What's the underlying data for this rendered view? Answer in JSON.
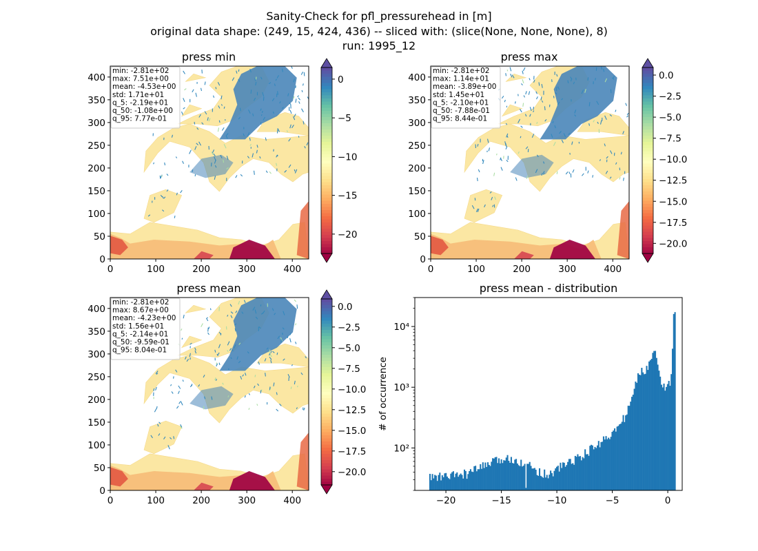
{
  "figure": {
    "title_line1": "Sanity-Check for pfl_pressurehead in [m]",
    "title_line2": "original data shape: (249, 15, 424, 436) -- sliced with: (slice(None, None, None), 8)",
    "title_line3": "run: 1995_12"
  },
  "chart_data": [
    {
      "type": "heatmap",
      "title": "press min",
      "xticks": [
        "0",
        "100",
        "200",
        "300",
        "400"
      ],
      "yticks": [
        "0",
        "50",
        "100",
        "150",
        "200",
        "250",
        "300",
        "350",
        "400"
      ],
      "xlim": [
        0,
        436
      ],
      "ylim": [
        0,
        424
      ],
      "colormap": "Spectral",
      "colorbar": {
        "ticks": [
          "0",
          "−5",
          "−10",
          "−15",
          "−20"
        ],
        "values": [
          0,
          -5,
          -10,
          -15,
          -20
        ],
        "vmin": -22.5,
        "vmax": 1.5,
        "extend": "both"
      },
      "stats": [
        "min: -2.81e+02",
        "max: 7.51e+00",
        "mean: -4.53e+00",
        "std: 1.71e+01",
        "q_5: -2.19e+01",
        "q_50: -1.08e+00",
        "q_95: 7.77e-01"
      ]
    },
    {
      "type": "heatmap",
      "title": "press max",
      "xticks": [
        "0",
        "100",
        "200",
        "300",
        "400"
      ],
      "yticks": [
        "0",
        "50",
        "100",
        "150",
        "200",
        "250",
        "300",
        "350",
        "400"
      ],
      "xlim": [
        0,
        436
      ],
      "ylim": [
        0,
        424
      ],
      "colormap": "Spectral",
      "colorbar": {
        "ticks": [
          "0.0",
          "−2.5",
          "−5.0",
          "−7.5",
          "−10.0",
          "−12.5",
          "−15.0",
          "−17.5",
          "−20.0"
        ],
        "values": [
          0,
          -2.5,
          -5,
          -7.5,
          -10,
          -12.5,
          -15,
          -17.5,
          -20
        ],
        "vmin": -21.2,
        "vmax": 0.9,
        "extend": "both"
      },
      "stats": [
        "min: -2.81e+02",
        "max: 1.14e+01",
        "mean: -3.89e+00",
        "std: 1.45e+01",
        "q_5: -2.10e+01",
        "q_50: -7.88e-01",
        "q_95: 8.44e-01"
      ]
    },
    {
      "type": "heatmap",
      "title": "press mean",
      "xticks": [
        "0",
        "100",
        "200",
        "300",
        "400"
      ],
      "yticks": [
        "0",
        "50",
        "100",
        "150",
        "200",
        "250",
        "300",
        "350",
        "400"
      ],
      "xlim": [
        0,
        436
      ],
      "ylim": [
        0,
        424
      ],
      "colormap": "Spectral",
      "colorbar": {
        "ticks": [
          "0.0",
          "−2.5",
          "−5.0",
          "−7.5",
          "−10.0",
          "−12.5",
          "−15.0",
          "−17.5",
          "−20.0"
        ],
        "values": [
          0,
          -2.5,
          -5,
          -7.5,
          -10,
          -12.5,
          -15,
          -17.5,
          -20
        ],
        "vmin": -21.6,
        "vmax": 0.9,
        "extend": "both"
      },
      "stats": [
        "min: -2.81e+02",
        "max: 8.67e+00",
        "mean: -4.23e+00",
        "std: 1.56e+01",
        "q_5: -2.14e+01",
        "q_50: -9.59e-01",
        "q_95: 8.04e-01"
      ]
    },
    {
      "type": "bar",
      "title": "press mean - distribution",
      "ylabel": "# of occurrence",
      "xlabel": "",
      "xlim": [
        -22.8,
        1.3
      ],
      "ylim": [
        20,
        30000
      ],
      "yscale": "log",
      "xticks": [
        "−20",
        "−15",
        "−10",
        "−5",
        "0"
      ],
      "xtick_values": [
        -20,
        -15,
        -10,
        -5,
        0
      ],
      "yticks": [
        "10²",
        "10³",
        "10⁴"
      ],
      "ytick_values": [
        100,
        1000,
        10000
      ],
      "color": "#1f77b4",
      "hist_knots": [
        [
          -21.5,
          33
        ],
        [
          -20,
          34
        ],
        [
          -18,
          38
        ],
        [
          -16.5,
          52
        ],
        [
          -15,
          65
        ],
        [
          -14,
          68
        ],
        [
          -13,
          57
        ],
        [
          -12,
          45
        ],
        [
          -11,
          37
        ],
        [
          -10.5,
          38
        ],
        [
          -9.5,
          52
        ],
        [
          -8.5,
          63
        ],
        [
          -7.5,
          80
        ],
        [
          -6,
          125
        ],
        [
          -5.5,
          160
        ],
        [
          -5,
          170
        ],
        [
          -4.3,
          240
        ],
        [
          -3.7,
          380
        ],
        [
          -3.2,
          700
        ],
        [
          -2.9,
          1100
        ],
        [
          -2.5,
          1900
        ],
        [
          -2.0,
          1750
        ],
        [
          -1.8,
          2200
        ],
        [
          -1.5,
          3200
        ],
        [
          -1.2,
          5000
        ],
        [
          -0.9,
          2800
        ],
        [
          -0.7,
          1300
        ],
        [
          -0.4,
          1000
        ],
        [
          0.0,
          1050
        ],
        [
          0.3,
          1300
        ],
        [
          0.55,
          17000
        ],
        [
          0.7,
          17000
        ]
      ]
    }
  ]
}
